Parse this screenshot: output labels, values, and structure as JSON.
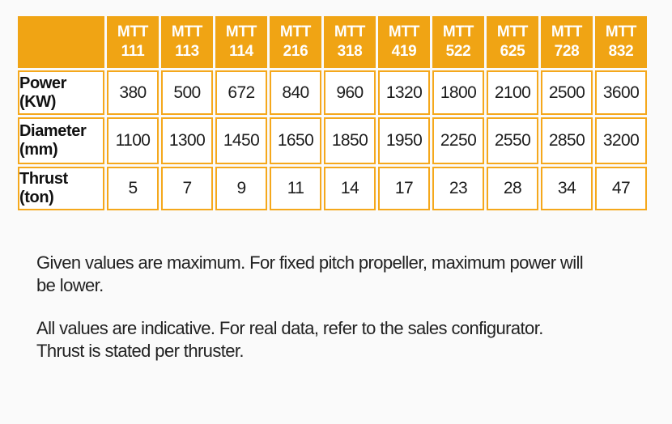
{
  "colors": {
    "header_orange": "#F0A414",
    "border_orange": "#F5A81C",
    "text_dark": "#1d1d1d"
  },
  "table": {
    "corner_label": "",
    "columns": [
      "MTT\n111",
      "MTT\n113",
      "MTT\n114",
      "MTT\n216",
      "MTT\n318",
      "MTT\n419",
      "MTT\n522",
      "MTT\n625",
      "MTT\n728",
      "MTT\n832"
    ],
    "rows": [
      {
        "label": "Power\n(KW)",
        "values": [
          "380",
          "500",
          "672",
          "840",
          "960",
          "1320",
          "1800",
          "2100",
          "2500",
          "3600"
        ]
      },
      {
        "label": "Diameter\n(mm)",
        "values": [
          "1100",
          "1300",
          "1450",
          "1650",
          "1850",
          "1950",
          "2250",
          "2550",
          "2850",
          "3200"
        ]
      },
      {
        "label": "Thrust\n(ton)",
        "values": [
          "5",
          "7",
          "9",
          "11",
          "14",
          "17",
          "23",
          "28",
          "34",
          "47"
        ]
      }
    ]
  },
  "notes": [
    {
      "lines": [
        "Given values are maximum. For fixed pitch propeller, maximum power will",
        "be lower."
      ]
    },
    {
      "lines": [
        "All values are indicative. For real data, refer to the sales configurator.",
        "Thrust is stated per thruster."
      ]
    }
  ]
}
